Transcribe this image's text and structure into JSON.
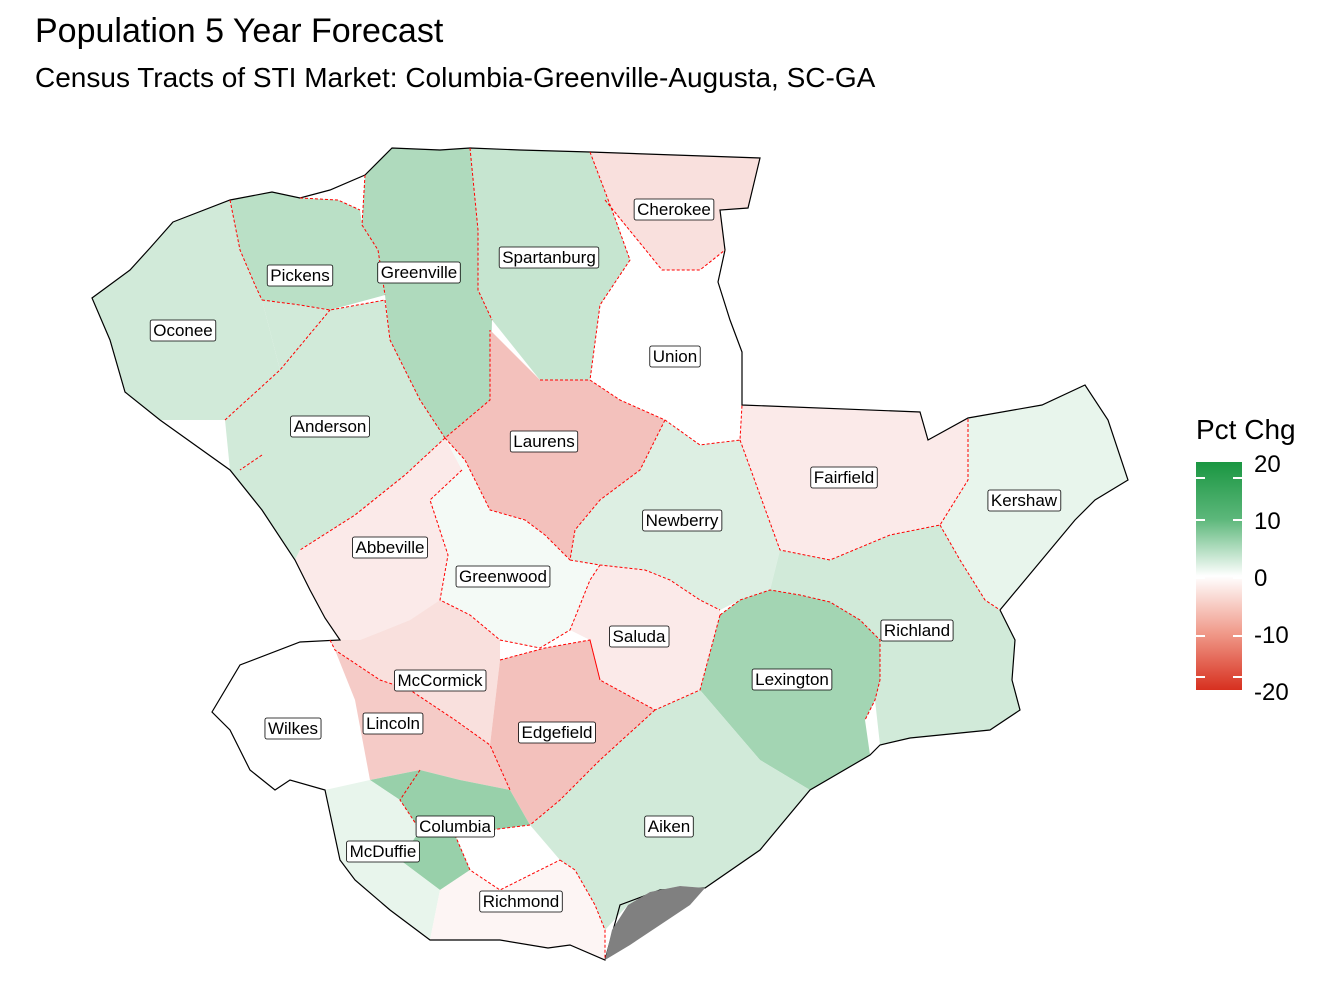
{
  "title": "Population 5 Year Forecast",
  "subtitle": "Census Tracts of STI Market: Columbia-Greenville-Augusta, SC-GA",
  "legend": {
    "title": "Pct Chg",
    "ticks": [
      "20",
      "10",
      "0",
      "-10",
      "-20"
    ],
    "color_high": "#1a9641",
    "color_mid": "#ffffff",
    "color_low": "#d7301f"
  },
  "colors": {
    "county_border": "#ff0000",
    "region_outline": "#000000",
    "missing": "#808080"
  },
  "counties": [
    {
      "name": "Cherokee",
      "pct_chg": -3
    },
    {
      "name": "Pickens",
      "pct_chg": 6
    },
    {
      "name": "Greenville",
      "pct_chg": 7
    },
    {
      "name": "Spartanburg",
      "pct_chg": 5
    },
    {
      "name": "Oconee",
      "pct_chg": 4
    },
    {
      "name": "Union",
      "pct_chg": 0
    },
    {
      "name": "Anderson",
      "pct_chg": 4
    },
    {
      "name": "Laurens",
      "pct_chg": -6
    },
    {
      "name": "Fairfield",
      "pct_chg": -2
    },
    {
      "name": "Kershaw",
      "pct_chg": 2
    },
    {
      "name": "Newberry",
      "pct_chg": 3
    },
    {
      "name": "Abbeville",
      "pct_chg": -2
    },
    {
      "name": "Greenwood",
      "pct_chg": 1
    },
    {
      "name": "Saluda",
      "pct_chg": -2
    },
    {
      "name": "Richland",
      "pct_chg": 4
    },
    {
      "name": "McCormick",
      "pct_chg": -3
    },
    {
      "name": "Lexington",
      "pct_chg": 8
    },
    {
      "name": "Wilkes",
      "pct_chg": 0
    },
    {
      "name": "Lincoln",
      "pct_chg": -5
    },
    {
      "name": "Edgefield",
      "pct_chg": -6
    },
    {
      "name": "Columbia",
      "pct_chg": 9
    },
    {
      "name": "Aiken",
      "pct_chg": 4
    },
    {
      "name": "McDuffie",
      "pct_chg": 2
    },
    {
      "name": "Richmond",
      "pct_chg": -1
    }
  ]
}
